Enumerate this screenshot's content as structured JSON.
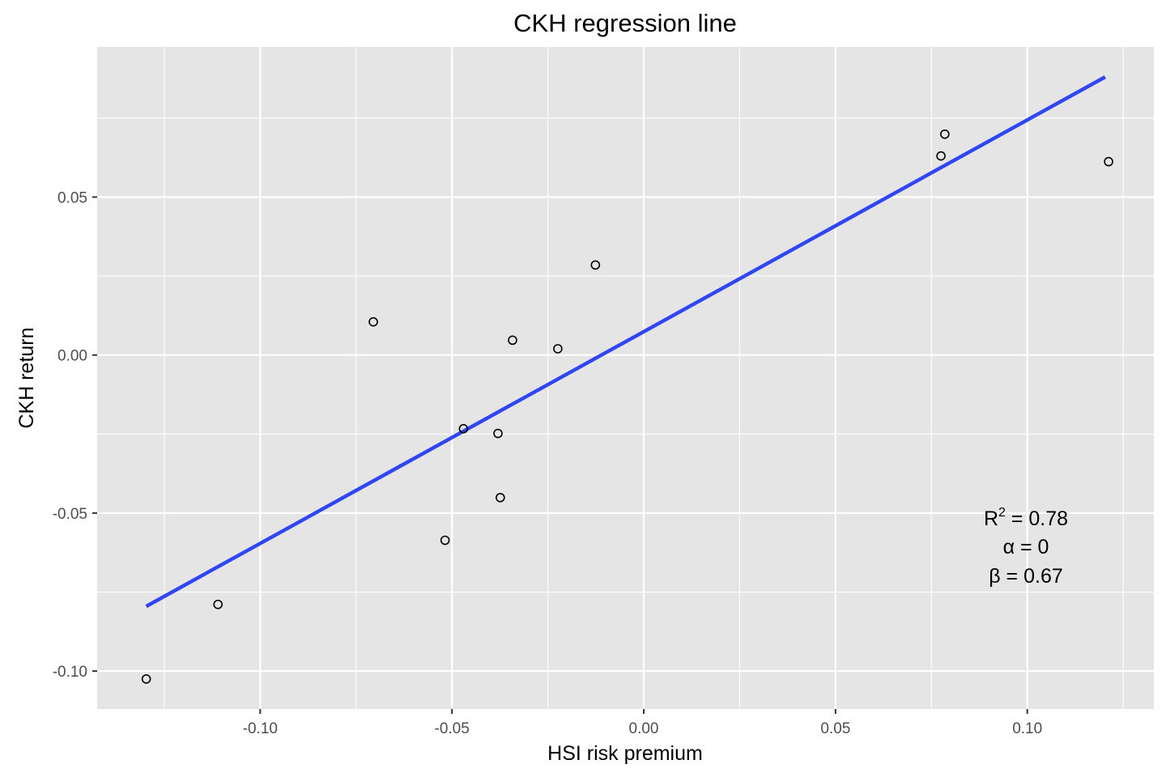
{
  "chart_data": {
    "type": "scatter",
    "title": "CKH regression line",
    "xlabel": "HSI risk premium",
    "ylabel": "CKH return",
    "xlim": [
      -0.1425,
      0.133
    ],
    "ylim": [
      -0.112,
      0.0975
    ],
    "x_ticks": [
      -0.1,
      -0.05,
      0.0,
      0.05,
      0.1
    ],
    "x_tick_labels": [
      "-0.10",
      "-0.05",
      "0.00",
      "0.05",
      "0.10"
    ],
    "y_ticks": [
      -0.1,
      -0.05,
      0.0,
      0.05
    ],
    "y_tick_labels": [
      "-0.10",
      "-0.05",
      "0.00",
      "0.05"
    ],
    "grid": true,
    "legend": "none",
    "colors": {
      "panel": "#e5e5e5",
      "grid": "#ffffff",
      "line": "#3046f5",
      "point": "#000000"
    },
    "points": [
      {
        "x": -0.1297,
        "y": -0.1025
      },
      {
        "x": -0.111,
        "y": -0.0789
      },
      {
        "x": -0.0705,
        "y": 0.0105
      },
      {
        "x": -0.0518,
        "y": -0.0586
      },
      {
        "x": -0.047,
        "y": -0.0233
      },
      {
        "x": -0.038,
        "y": -0.0248
      },
      {
        "x": -0.0374,
        "y": -0.0451
      },
      {
        "x": -0.0342,
        "y": 0.0047
      },
      {
        "x": -0.0224,
        "y": 0.002
      },
      {
        "x": -0.0126,
        "y": 0.0285
      },
      {
        "x": 0.0775,
        "y": 0.063
      },
      {
        "x": 0.0785,
        "y": 0.0699
      },
      {
        "x": 0.1212,
        "y": 0.0612
      }
    ],
    "regression_line": {
      "name": "fit",
      "x": [
        -0.1297,
        0.1203
      ],
      "y": [
        -0.0795,
        0.088
      ]
    },
    "annotations": {
      "r2_label": "R",
      "r2_sup": "2",
      "r2_value": " = 0.78",
      "alpha_text": "α = 0",
      "beta_text": "β = 0.67",
      "position": "lower-right"
    }
  }
}
